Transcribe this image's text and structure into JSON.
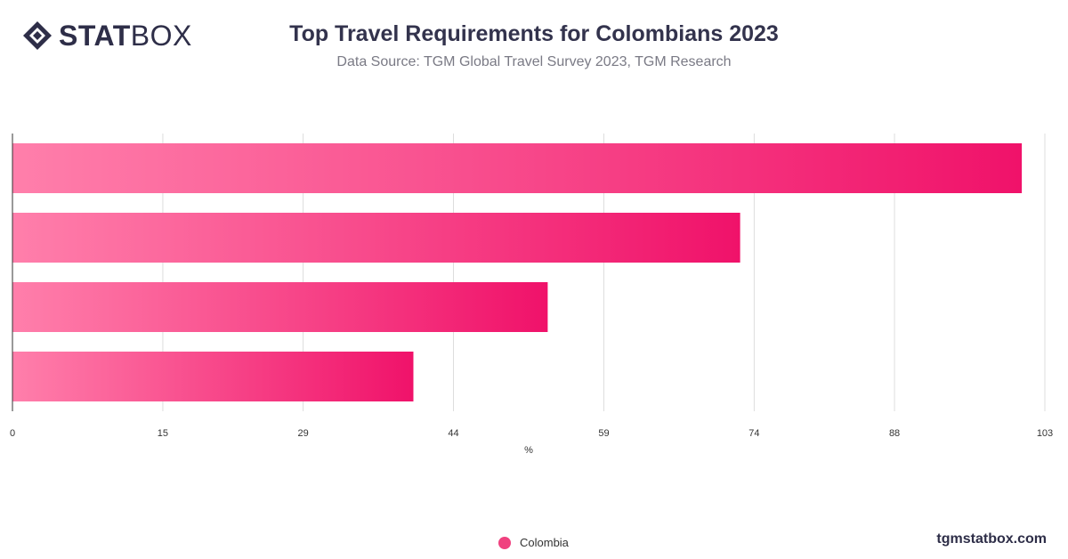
{
  "brand": {
    "logo_bold": "STAT",
    "logo_light": "BOX",
    "watermark": "tgmstatbox.com"
  },
  "header": {
    "title": "Top Travel Requirements for Colombians 2023",
    "subtitle": "Data Source: TGM Global Travel Survey 2023, TGM Research"
  },
  "chart_data": {
    "type": "bar",
    "orientation": "horizontal",
    "title": "Top Travel Requirements for Colombians 2023",
    "subtitle": "Data Source: TGM Global Travel Survey 2023, TGM Research",
    "xlabel": "%",
    "ylabel": "",
    "xlim": [
      0,
      103
    ],
    "x_ticks": [
      "0",
      "15",
      "29",
      "44",
      "59",
      "74",
      "88",
      "103"
    ],
    "grid": true,
    "legend_position": "bottom",
    "categories": [
      "",
      "",
      "",
      ""
    ],
    "series": [
      {
        "name": "Colombia",
        "color": "#f0417f",
        "values": [
          100.7,
          72.6,
          53.4,
          40.0
        ]
      }
    ]
  },
  "colors": {
    "bar_start": "#ff7fab",
    "bar_end": "#f0126a",
    "grid": "#dddddd",
    "axis_text": "#333333"
  }
}
